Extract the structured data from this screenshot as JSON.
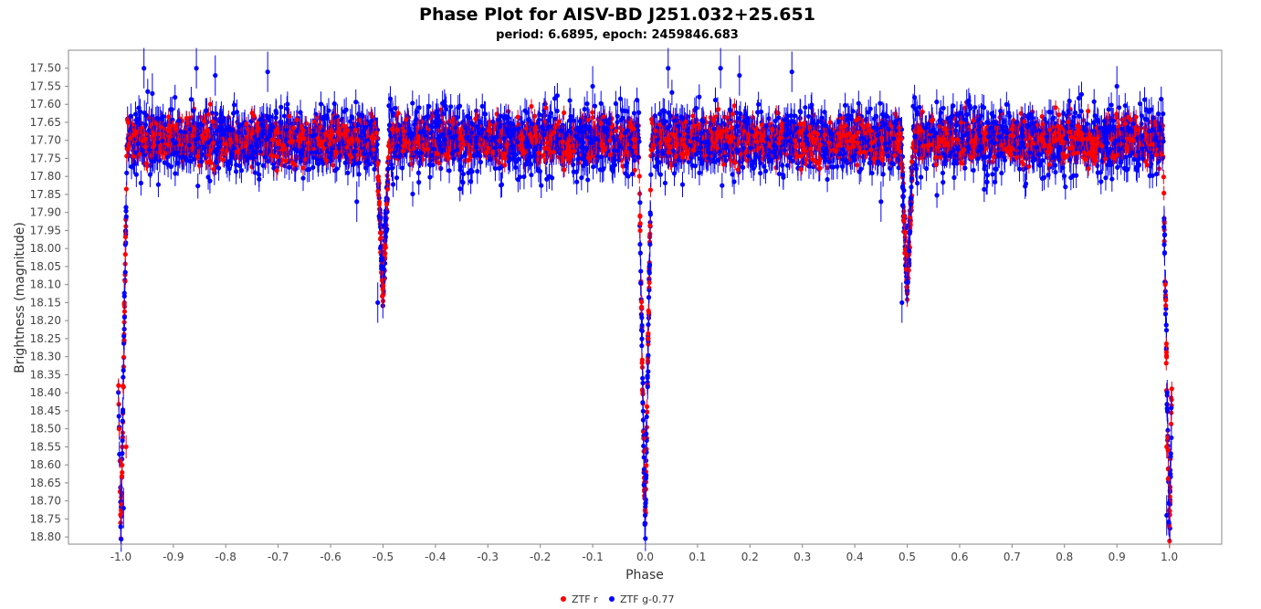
{
  "chart_data": {
    "type": "scatter",
    "title": "Phase Plot for AISV-BD J251.032+25.651",
    "subtitle": "period: 6.6895, epoch: 2459846.683",
    "xlabel": "Phase",
    "ylabel": "Brightness (magnitude)",
    "xlim": [
      -1.1,
      1.1
    ],
    "ylim": [
      17.45,
      18.82
    ],
    "y_inverted": true,
    "x_ticks": [
      -1.0,
      -0.9,
      -0.8,
      -0.7,
      -0.6,
      -0.5,
      -0.4,
      -0.3,
      -0.2,
      -0.1,
      0.0,
      0.1,
      0.2,
      0.3,
      0.4,
      0.5,
      0.6,
      0.7,
      0.8,
      0.9,
      1.0
    ],
    "x_tick_labels": [
      "-1.0",
      "-0.9",
      "-0.8",
      "-0.7",
      "-0.6",
      "-0.5",
      "-0.4",
      "-0.3",
      "-0.2",
      "-0.1",
      "0.0",
      "0.1",
      "0.2",
      "0.3",
      "0.4",
      "0.5",
      "0.6",
      "0.7",
      "0.8",
      "0.9",
      "1.0"
    ],
    "y_ticks": [
      17.5,
      17.55,
      17.6,
      17.65,
      17.7,
      17.75,
      17.8,
      17.85,
      17.9,
      17.95,
      18.0,
      18.05,
      18.1,
      18.15,
      18.2,
      18.25,
      18.3,
      18.35,
      18.4,
      18.45,
      18.5,
      18.55,
      18.6,
      18.65,
      18.7,
      18.75,
      18.8
    ],
    "y_tick_labels": [
      "17.50",
      "17.55",
      "17.60",
      "17.65",
      "17.70",
      "17.75",
      "17.80",
      "17.85",
      "17.90",
      "17.95",
      "18.00",
      "18.05",
      "18.10",
      "18.15",
      "18.20",
      "18.25",
      "18.30",
      "18.35",
      "18.40",
      "18.45",
      "18.50",
      "18.55",
      "18.60",
      "18.65",
      "18.70",
      "18.75",
      "18.80"
    ],
    "grid": false,
    "legend_position": "bottom-center",
    "light_curve_model": {
      "baseline_mag": 17.7,
      "primary_eclipse": {
        "phase": 0.0,
        "depth_mag": 1.1,
        "half_width": 0.012
      },
      "secondary_eclipse": {
        "phase": 0.5,
        "depth_mag": 0.43,
        "half_width": 0.012
      }
    },
    "series": [
      {
        "name": "ZTF r",
        "color": "#ff0000",
        "scatter_mag": 0.03,
        "error_mag": 0.02
      },
      {
        "name": "ZTF g-0.77",
        "color": "#0000ff",
        "scatter_mag": 0.045,
        "error_mag": 0.035
      }
    ],
    "outliers": [
      {
        "x": -0.956,
        "y": 17.5,
        "series": 1
      },
      {
        "x": -0.856,
        "y": 17.5,
        "series": 1
      },
      {
        "x": -0.82,
        "y": 17.52,
        "series": 1
      },
      {
        "x": -0.72,
        "y": 17.51,
        "series": 1
      },
      {
        "x": -0.94,
        "y": 17.57,
        "series": 1
      },
      {
        "x": -0.1,
        "y": 17.55,
        "series": 1
      },
      {
        "x": 0.044,
        "y": 17.5,
        "series": 1
      },
      {
        "x": 0.144,
        "y": 17.5,
        "series": 1
      },
      {
        "x": 0.18,
        "y": 17.52,
        "series": 1
      },
      {
        "x": 0.28,
        "y": 17.51,
        "series": 1
      },
      {
        "x": 0.9,
        "y": 17.55,
        "series": 1
      },
      {
        "x": -0.55,
        "y": 17.87,
        "series": 1
      },
      {
        "x": 0.45,
        "y": 17.87,
        "series": 1
      },
      {
        "x": -0.51,
        "y": 18.15,
        "series": 1
      },
      {
        "x": 0.49,
        "y": 18.15,
        "series": 1
      },
      {
        "x": -0.995,
        "y": 18.72,
        "series": 1
      },
      {
        "x": 0.0,
        "y": 18.74,
        "series": 1
      },
      {
        "x": 0.995,
        "y": 18.74,
        "series": 1
      },
      {
        "x": -0.99,
        "y": 18.55,
        "series": 0
      },
      {
        "x": 0.995,
        "y": 18.55,
        "series": 0
      }
    ]
  },
  "legend": {
    "items": [
      {
        "label": "ZTF r",
        "color": "#ff0000"
      },
      {
        "label": "ZTF g-0.77",
        "color": "#0000ff"
      }
    ]
  }
}
